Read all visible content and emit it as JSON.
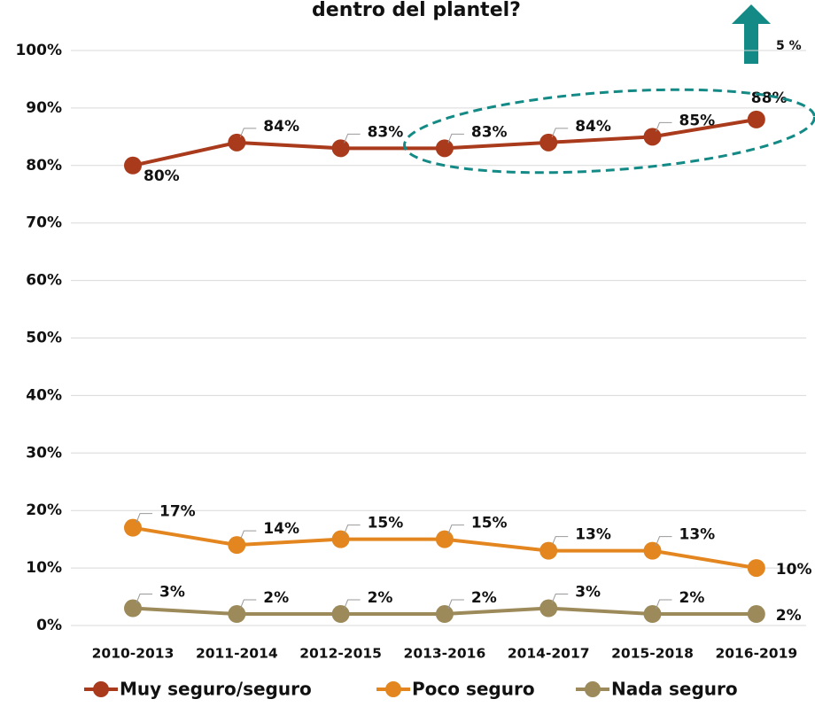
{
  "chart_data": {
    "type": "line",
    "title": "dentro del plantel?",
    "annotation": "5 %",
    "categories": [
      "2010-2013",
      "2011-2014",
      "2012-2015",
      "2013-2016",
      "2014-2017",
      "2015-2018",
      "2016-2019"
    ],
    "series": [
      {
        "name": "Muy seguro/seguro",
        "color": "#a93a1c",
        "values": [
          80,
          84,
          83,
          83,
          84,
          85,
          88
        ],
        "value_labels": [
          "80%",
          "84%",
          "83%",
          "83%",
          "84%",
          "85%",
          "88%"
        ]
      },
      {
        "name": "Poco seguro",
        "color": "#e3861f",
        "values": [
          17,
          14,
          15,
          15,
          13,
          13,
          10
        ],
        "value_labels": [
          "17%",
          "14%",
          "15%",
          "15%",
          "13%",
          "13%",
          "10%"
        ]
      },
      {
        "name": "Nada seguro",
        "color": "#9c8a5a",
        "values": [
          3,
          2,
          2,
          2,
          3,
          2,
          2
        ],
        "value_labels": [
          "3%",
          "2%",
          "2%",
          "2%",
          "3%",
          "2%",
          "2%"
        ]
      }
    ],
    "ylim": [
      0,
      100
    ],
    "yticks": [
      {
        "value": 0,
        "label": "0%"
      },
      {
        "value": 10,
        "label": "10%"
      },
      {
        "value": 20,
        "label": "20%"
      },
      {
        "value": 30,
        "label": "30%"
      },
      {
        "value": 40,
        "label": "40%"
      },
      {
        "value": 50,
        "label": "50%"
      },
      {
        "value": 60,
        "label": "60%"
      },
      {
        "value": 70,
        "label": "70%"
      },
      {
        "value": 80,
        "label": "80%"
      },
      {
        "value": 90,
        "label": "90%"
      },
      {
        "value": 100,
        "label": "100%"
      }
    ],
    "grid": true,
    "legend": "bottom"
  }
}
